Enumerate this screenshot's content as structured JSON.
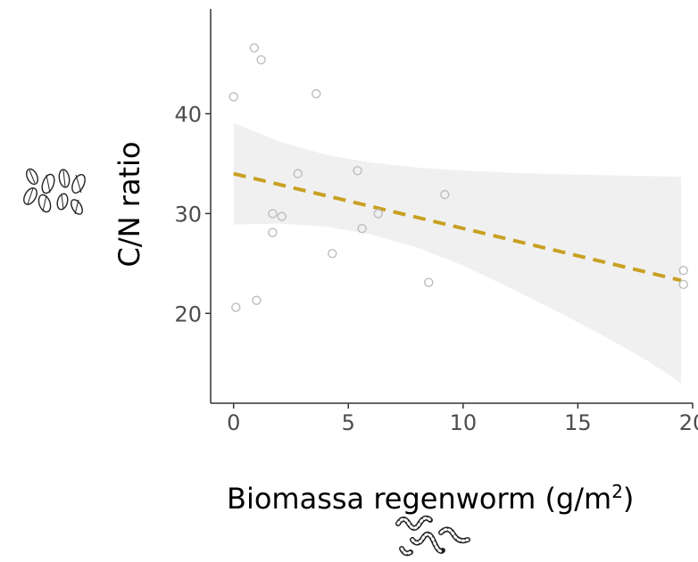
{
  "chart_data": {
    "type": "scatter",
    "xlabel": "Biomassa regenworm (g/m",
    "xlabel_sup": "2",
    "xlabel_suffix": ")",
    "ylabel": "C/N ratio",
    "xlim": [
      -1,
      20
    ],
    "ylim": [
      11,
      50.5
    ],
    "x_ticks": [
      0,
      5,
      10,
      15,
      20
    ],
    "y_ticks": [
      20,
      30,
      40
    ],
    "grid": false,
    "colors": {
      "trend": "#c8a021",
      "band": "#f0f0f0",
      "points": "#bdbdbd",
      "axis": "#333333"
    },
    "points": [
      {
        "x": 0.0,
        "y": 41.7
      },
      {
        "x": 0.9,
        "y": 46.6
      },
      {
        "x": 1.2,
        "y": 45.4
      },
      {
        "x": 3.6,
        "y": 42.0
      },
      {
        "x": 0.1,
        "y": 20.6
      },
      {
        "x": 1.0,
        "y": 21.3
      },
      {
        "x": 1.7,
        "y": 30.0
      },
      {
        "x": 1.7,
        "y": 28.1
      },
      {
        "x": 2.1,
        "y": 29.7
      },
      {
        "x": 2.8,
        "y": 34.0
      },
      {
        "x": 4.3,
        "y": 26.0
      },
      {
        "x": 5.4,
        "y": 34.3
      },
      {
        "x": 5.6,
        "y": 28.5
      },
      {
        "x": 6.3,
        "y": 30.0
      },
      {
        "x": 8.5,
        "y": 23.1
      },
      {
        "x": 9.2,
        "y": 31.9
      },
      {
        "x": 19.6,
        "y": 24.3
      },
      {
        "x": 19.6,
        "y": 22.9
      }
    ],
    "trend": {
      "x": [
        0,
        19.5
      ],
      "y": [
        34.0,
        23.3
      ]
    },
    "confidence_band": {
      "x": [
        0,
        2,
        4,
        6,
        8,
        10,
        12,
        14,
        16,
        18,
        19.5
      ],
      "upper": [
        39.1,
        37.2,
        35.9,
        35.1,
        34.6,
        34.3,
        34.1,
        33.95,
        33.85,
        33.75,
        33.7
      ],
      "lower": [
        28.9,
        29.0,
        28.7,
        27.9,
        26.6,
        24.8,
        22.6,
        20.3,
        17.9,
        15.3,
        13.0
      ]
    }
  },
  "decorations": {
    "leaves_icon": "leaves-icon",
    "worms_icon": "earthworm-icon"
  }
}
